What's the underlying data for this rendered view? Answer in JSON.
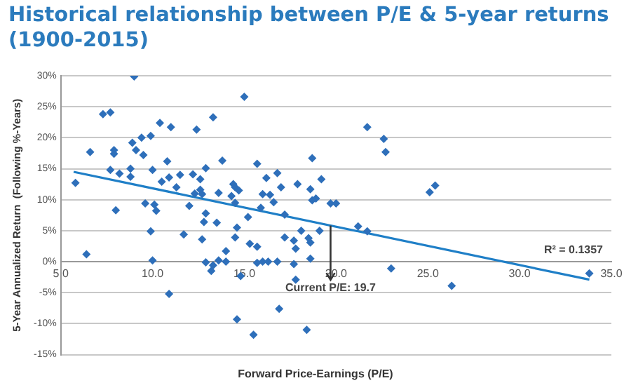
{
  "chart_data": {
    "type": "scatter",
    "title": "Historical relationship between P/E & 5-year returns (1900-2015)",
    "xlabel": "Forward Price-Earnings (P/E)",
    "ylabel": "5-Year Annualized Return  (Following %-Years)",
    "xlim": [
      5,
      35
    ],
    "ylim": [
      -15,
      30
    ],
    "xticks": [
      {
        "value": 5,
        "label": "5.0"
      },
      {
        "value": 10,
        "label": "10.0"
      },
      {
        "value": 15,
        "label": "15.0"
      },
      {
        "value": 20,
        "label": "20.0"
      },
      {
        "value": 25,
        "label": "25.0"
      },
      {
        "value": 30,
        "label": "30.0"
      },
      {
        "value": 35,
        "label": "35.0"
      }
    ],
    "yticks": [
      {
        "value": -15,
        "label": "-15%"
      },
      {
        "value": -10,
        "label": "-10%"
      },
      {
        "value": -5,
        "label": "-5%"
      },
      {
        "value": 0,
        "label": "0%"
      },
      {
        "value": 5,
        "label": "5%"
      },
      {
        "value": 10,
        "label": "10%"
      },
      {
        "value": 15,
        "label": "15%"
      },
      {
        "value": 20,
        "label": "20%"
      },
      {
        "value": 25,
        "label": "25%"
      },
      {
        "value": 30,
        "label": "30%"
      }
    ],
    "grid": "y",
    "legend": false,
    "marker": "diamond",
    "series": [
      {
        "color": "#2e6fba",
        "x": [
          5.8,
          6.4,
          6.6,
          7.3,
          7.7,
          7.7,
          7.9,
          7.9,
          8.0,
          8.2,
          8.8,
          8.8,
          8.9,
          9.0,
          9.1,
          9.4,
          9.5,
          9.6,
          9.9,
          9.9,
          10.0,
          10.0,
          10.1,
          10.2,
          10.4,
          10.5,
          10.8,
          10.9,
          10.9,
          11.0,
          11.3,
          11.5,
          11.7,
          12.0,
          12.2,
          12.3,
          12.4,
          12.6,
          12.6,
          12.7,
          12.7,
          12.9,
          12.9,
          12.8,
          12.9,
          13.3,
          13.2,
          13.3,
          13.6,
          13.5,
          13.6,
          13.8,
          14.0,
          14.0,
          14.3,
          14.4,
          14.5,
          14.5,
          14.6,
          14.6,
          14.5,
          14.7,
          14.8,
          15.0,
          15.2,
          15.3,
          15.5,
          15.7,
          15.7,
          15.7,
          15.9,
          16.0,
          16.0,
          16.2,
          16.3,
          16.4,
          16.6,
          16.8,
          16.8,
          16.9,
          17.0,
          17.2,
          17.2,
          17.7,
          17.7,
          17.8,
          17.8,
          17.9,
          18.1,
          18.4,
          18.5,
          18.6,
          18.6,
          18.6,
          18.7,
          18.7,
          18.9,
          19.1,
          19.2,
          19.7,
          20.0,
          21.2,
          21.7,
          21.7,
          22.6,
          22.7,
          23.0,
          25.1,
          25.4,
          26.3,
          33.8
        ],
        "values": [
          12.7,
          1.2,
          17.7,
          23.8,
          24.1,
          14.8,
          18.0,
          17.4,
          8.3,
          14.2,
          13.7,
          15.0,
          19.2,
          29.9,
          18.0,
          20.0,
          17.2,
          9.4,
          20.3,
          4.9,
          14.8,
          0.2,
          9.2,
          8.2,
          22.4,
          12.9,
          16.2,
          -5.2,
          13.6,
          21.7,
          12.0,
          14.0,
          4.4,
          9.0,
          14.1,
          11.0,
          21.3,
          13.3,
          11.6,
          10.9,
          3.6,
          15.1,
          7.8,
          6.4,
          -0.1,
          23.3,
          -1.5,
          -0.6,
          11.1,
          6.3,
          0.2,
          16.3,
          1.7,
          0.0,
          10.6,
          12.5,
          12.0,
          9.5,
          -9.3,
          5.5,
          3.9,
          11.5,
          -2.3,
          26.6,
          7.2,
          2.9,
          -11.8,
          15.8,
          2.4,
          -0.2,
          8.7,
          10.9,
          0.0,
          13.5,
          0.0,
          10.8,
          9.6,
          14.3,
          0.0,
          -7.6,
          12.0,
          7.6,
          3.9,
          3.4,
          -0.4,
          2.1,
          -2.9,
          12.5,
          5.0,
          -11.0,
          3.8,
          3.1,
          0.5,
          11.7,
          9.9,
          16.7,
          10.2,
          5.0,
          13.3,
          9.4,
          9.4,
          5.7,
          4.9,
          21.7,
          19.8,
          17.7,
          -1.1,
          11.2,
          12.3,
          -3.9,
          -1.9
        ]
      },
      {
        "type": "line",
        "color": "#1f7fc7",
        "marker": "none",
        "x": [
          5.7,
          33.8
        ],
        "values": [
          14.5,
          -2.9
        ]
      }
    ],
    "ref_lines": [
      {
        "axis": "x",
        "value": 19.7,
        "label": "Current P/E: 19.7",
        "color": "#333333"
      }
    ],
    "annotations": [
      "R² = 0.1357"
    ]
  }
}
